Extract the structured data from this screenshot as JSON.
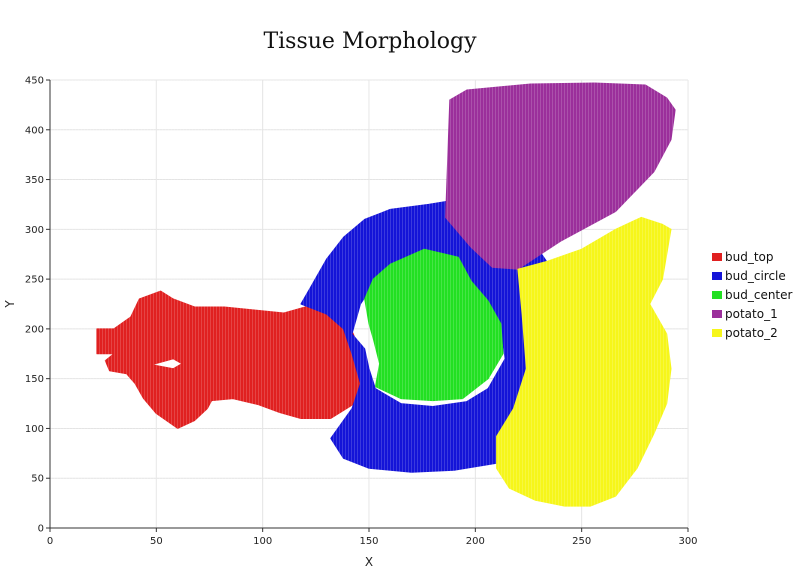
{
  "chart_data": {
    "type": "scatter",
    "title": "Tissue Morphology",
    "xlabel": "X",
    "ylabel": "Y",
    "xlim": [
      0,
      300
    ],
    "ylim": [
      0,
      450
    ],
    "xticks": [
      0,
      50,
      100,
      150,
      200,
      250,
      300
    ],
    "yticks": [
      0,
      50,
      100,
      150,
      200,
      250,
      300,
      350,
      400,
      450
    ],
    "grid": true,
    "legend_position": "right",
    "series": [
      {
        "name": "bud_top",
        "color": "#e02020",
        "region": [
          [
            22,
            200
          ],
          [
            30,
            200
          ],
          [
            38,
            212
          ],
          [
            42,
            230
          ],
          [
            52,
            238
          ],
          [
            58,
            230
          ],
          [
            68,
            222
          ],
          [
            82,
            222
          ],
          [
            96,
            219
          ],
          [
            110,
            216
          ],
          [
            125,
            225
          ],
          [
            132,
            224
          ],
          [
            140,
            220
          ],
          [
            136,
            212
          ],
          [
            142,
            198
          ],
          [
            146,
            178
          ],
          [
            148,
            158
          ],
          [
            144,
            126
          ],
          [
            132,
            110
          ],
          [
            118,
            110
          ],
          [
            108,
            116
          ],
          [
            98,
            124
          ],
          [
            86,
            130
          ],
          [
            76,
            128
          ],
          [
            74,
            120
          ],
          [
            68,
            108
          ],
          [
            60,
            100
          ],
          [
            50,
            115
          ],
          [
            44,
            130
          ],
          [
            40,
            145
          ],
          [
            38,
            150
          ],
          [
            36,
            155
          ],
          [
            28,
            158
          ],
          [
            26,
            168
          ],
          [
            30,
            175
          ],
          [
            22,
            175
          ]
        ],
        "hole": [
          [
            48,
            164
          ],
          [
            58,
            170
          ],
          [
            62,
            165
          ],
          [
            58,
            160
          ]
        ]
      },
      {
        "name": "bud_circle",
        "color": "#1414d8",
        "region": [
          [
            118,
            225
          ],
          [
            122,
            240
          ],
          [
            130,
            270
          ],
          [
            138,
            292
          ],
          [
            148,
            310
          ],
          [
            160,
            320
          ],
          [
            178,
            325
          ],
          [
            192,
            330
          ],
          [
            205,
            322
          ],
          [
            216,
            305
          ],
          [
            228,
            285
          ],
          [
            236,
            260
          ],
          [
            240,
            220
          ],
          [
            244,
            175
          ],
          [
            244,
            130
          ],
          [
            238,
            100
          ],
          [
            226,
            78
          ],
          [
            210,
            65
          ],
          [
            190,
            58
          ],
          [
            170,
            56
          ],
          [
            150,
            60
          ],
          [
            138,
            70
          ],
          [
            132,
            90
          ],
          [
            142,
            120
          ],
          [
            146,
            145
          ],
          [
            142,
            175
          ],
          [
            138,
            200
          ],
          [
            130,
            215
          ]
        ],
        "hole": [
          [
            142,
            195
          ],
          [
            146,
            225
          ],
          [
            154,
            250
          ],
          [
            168,
            262
          ],
          [
            184,
            260
          ],
          [
            196,
            248
          ],
          [
            206,
            228
          ],
          [
            212,
            200
          ],
          [
            214,
            170
          ],
          [
            206,
            140
          ],
          [
            196,
            127
          ],
          [
            180,
            122
          ],
          [
            165,
            125
          ],
          [
            153,
            140
          ],
          [
            150,
            160
          ],
          [
            148,
            180
          ]
        ]
      },
      {
        "name": "bud_center",
        "color": "#22e022",
        "region": [
          [
            148,
            230
          ],
          [
            152,
            250
          ],
          [
            160,
            265
          ],
          [
            176,
            280
          ],
          [
            192,
            272
          ],
          [
            198,
            248
          ],
          [
            206,
            228
          ],
          [
            212,
            205
          ],
          [
            213,
            175
          ],
          [
            206,
            150
          ],
          [
            194,
            130
          ],
          [
            180,
            128
          ],
          [
            165,
            130
          ],
          [
            153,
            142
          ],
          [
            155,
            165
          ],
          [
            152,
            190
          ],
          [
            150,
            205
          ]
        ]
      },
      {
        "name": "potato_1",
        "color": "#9b2f9b",
        "region": [
          [
            188,
            430
          ],
          [
            196,
            440
          ],
          [
            226,
            446
          ],
          [
            256,
            447
          ],
          [
            280,
            445
          ],
          [
            290,
            432
          ],
          [
            294,
            420
          ],
          [
            292,
            390
          ],
          [
            284,
            358
          ],
          [
            266,
            318
          ],
          [
            240,
            288
          ],
          [
            220,
            260
          ],
          [
            208,
            262
          ],
          [
            198,
            282
          ],
          [
            186,
            312
          ]
        ]
      },
      {
        "name": "potato_2",
        "color": "#f6f61a",
        "region": [
          [
            220,
            260
          ],
          [
            234,
            268
          ],
          [
            250,
            280
          ],
          [
            266,
            300
          ],
          [
            278,
            312
          ],
          [
            288,
            305
          ],
          [
            292,
            300
          ],
          [
            288,
            250
          ],
          [
            282,
            225
          ],
          [
            290,
            195
          ],
          [
            292,
            160
          ],
          [
            290,
            125
          ],
          [
            284,
            95
          ],
          [
            276,
            60
          ],
          [
            266,
            32
          ],
          [
            254,
            22
          ],
          [
            242,
            22
          ],
          [
            228,
            28
          ],
          [
            216,
            40
          ],
          [
            210,
            60
          ],
          [
            210,
            92
          ],
          [
            218,
            120
          ],
          [
            224,
            160
          ],
          [
            222,
            215
          ]
        ]
      }
    ]
  }
}
